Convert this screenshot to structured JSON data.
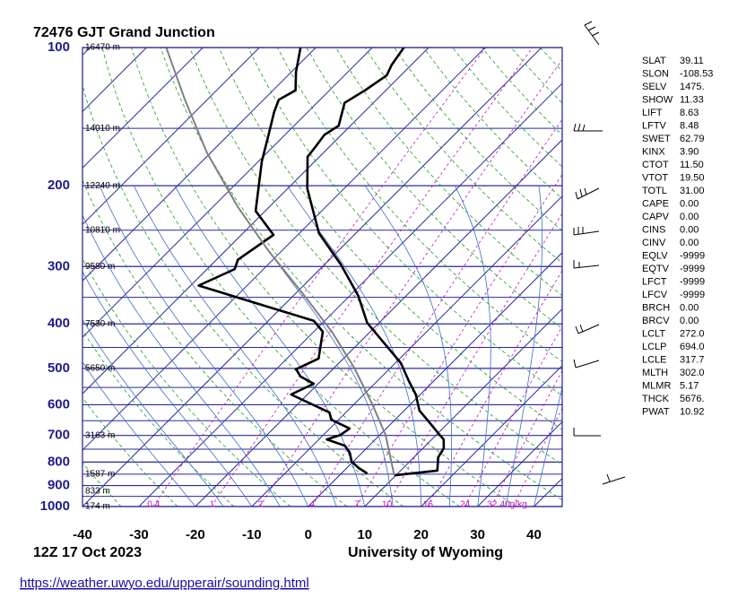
{
  "chart_data": {
    "type": "skewt",
    "title": "72476 GJT Grand Junction",
    "time": "12Z 17 Oct 2023",
    "source": "University of Wyoming",
    "link": "https://weather.uwyo.edu/upperair/sounding.html",
    "y_scale": "log",
    "skew": true,
    "xlim": [
      -40,
      45
    ],
    "ylim": [
      1000,
      100
    ],
    "xticks": [
      -40,
      -30,
      -20,
      -10,
      0,
      10,
      20,
      30,
      40
    ],
    "yticks": [
      100,
      200,
      300,
      400,
      500,
      600,
      700,
      800,
      900,
      1000
    ],
    "height_labels": [
      {
        "pressure": 100,
        "label": "16470 m"
      },
      {
        "pressure": 150,
        "label": "14010 m"
      },
      {
        "pressure": 200,
        "label": "12240 m"
      },
      {
        "pressure": 250,
        "label": "10810 m"
      },
      {
        "pressure": 300,
        "label": "9580 m"
      },
      {
        "pressure": 400,
        "label": "7530 m"
      },
      {
        "pressure": 500,
        "label": "5650 m"
      },
      {
        "pressure": 700,
        "label": "3163 m"
      },
      {
        "pressure": 850,
        "label": "1587 m"
      },
      {
        "pressure": 925,
        "label": "833 m"
      },
      {
        "pressure": 1000,
        "label": "174 m"
      }
    ],
    "mixing_ratios": [
      0.4,
      1,
      2,
      4,
      7,
      10,
      16,
      24,
      32,
      {
        "value": 40,
        "label": "40g/kg"
      }
    ],
    "series": [
      {
        "color": "#000000",
        "pressure": [
          855,
          835,
          781,
          747,
          714,
          695,
          652,
          618,
          570,
          533,
          487,
          398,
          348,
          297,
          254,
          203,
          173,
          164,
          155,
          148,
          132,
          124,
          115,
          109,
          100
        ],
        "values": [
          9.7,
          16.5,
          14.3,
          13.7,
          12.1,
          10.3,
          6.2,
          2.7,
          -0.8,
          -4.4,
          -9.0,
          -22.1,
          -28.4,
          -37.1,
          -46.5,
          -56.5,
          -62.1,
          -62.5,
          -63.0,
          -62.1,
          -65.1,
          -63.7,
          -62.5,
          -63.5,
          -64.4
        ]
      },
      {
        "color": "#000000",
        "pressure": [
          847,
          824,
          798,
          763,
          737,
          714,
          698,
          676,
          647,
          624,
          570,
          540,
          521,
          502,
          476,
          416,
          394,
          330,
          304,
          290,
          256,
          227,
          177,
          155,
          138,
          130,
          124,
          113,
          100
        ],
        "values": [
          4.6,
          2.1,
          -0.3,
          -2.2,
          -4.3,
          -8.6,
          -7.0,
          -6.5,
          -11.3,
          -12.9,
          -22.9,
          -20.8,
          -24.4,
          -26.5,
          -24.4,
          -28.4,
          -31.9,
          -58.6,
          -55.1,
          -56.2,
          -54.3,
          -61.7,
          -69.4,
          -72.9,
          -76.0,
          -77.3,
          -76.0,
          -79.2,
          -82.7
        ]
      },
      {
        "color": "#808080",
        "pressure": [
          855,
          698,
          596,
          498,
          416,
          348,
          278,
          222,
          169,
          129,
          100
        ],
        "values": [
          9.7,
          1.0,
          -7.0,
          -16.5,
          -26.8,
          -37.9,
          -52.2,
          -65.7,
          -80.8,
          -94.3,
          -106.5
        ]
      }
    ],
    "indices": [
      [
        "SLAT",
        "39.11"
      ],
      [
        "SLON",
        "-108.53"
      ],
      [
        "SELV",
        "1475."
      ],
      [
        "SHOW",
        "11.33"
      ],
      [
        "LIFT",
        "8.63"
      ],
      [
        "LFTV",
        "8.48"
      ],
      [
        "SWET",
        "62.79"
      ],
      [
        "KINX",
        "3.90"
      ],
      [
        "CTOT",
        "11.50"
      ],
      [
        "VTOT",
        "19.50"
      ],
      [
        "TOTL",
        "31.00"
      ],
      [
        "CAPE",
        "0.00"
      ],
      [
        "CAPV",
        "0.00"
      ],
      [
        "CINS",
        "0.00"
      ],
      [
        "CINV",
        "0.00"
      ],
      [
        "EQLV",
        "-9999"
      ],
      [
        "EQTV",
        "-9999"
      ],
      [
        "LFCT",
        "-9999"
      ],
      [
        "LFCV",
        "-9999"
      ],
      [
        "BRCH",
        "0.00"
      ],
      [
        "BRCV",
        "0.00"
      ],
      [
        "LCLT",
        "272.0"
      ],
      [
        "LCLP",
        "694.0"
      ],
      [
        "LCLE",
        "317.7"
      ],
      [
        "MLTH",
        "302.0"
      ],
      [
        "MLMR",
        "5.17"
      ],
      [
        "THCK",
        "5676."
      ],
      [
        "PWAT",
        "10.92"
      ]
    ]
  }
}
